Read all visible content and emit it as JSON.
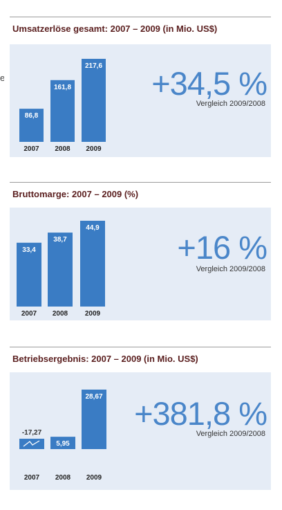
{
  "stray_text": "e",
  "chart_data": [
    {
      "type": "bar",
      "title": "Umsatzerlöse gesamt: 2007 – 2009 (in Mio. US$)",
      "categories": [
        "2007",
        "2008",
        "2009"
      ],
      "values": [
        86.8,
        161.8,
        217.6
      ],
      "value_labels": [
        "86,8",
        "161,8",
        "217,6"
      ],
      "headline": "+34,5 %",
      "comparison": "Vergleich 2009/2008",
      "ylim": [
        0,
        217.6
      ],
      "grid": false,
      "bar_color": "#3a7cc4"
    },
    {
      "type": "bar",
      "title": "Bruttomarge: 2007 – 2009 (%)",
      "categories": [
        "2007",
        "2008",
        "2009"
      ],
      "values": [
        33.4,
        38.7,
        44.9
      ],
      "value_labels": [
        "33,4",
        "38,7",
        "44,9"
      ],
      "headline": "+16 %",
      "comparison": "Vergleich 2009/2008",
      "ylim": [
        0,
        44.9
      ],
      "grid": false,
      "bar_color": "#3a7cc4"
    },
    {
      "type": "bar",
      "title": "Betriebsergebnis: 2007 – 2009 (in Mio. US$)",
      "categories": [
        "2007",
        "2008",
        "2009"
      ],
      "values": [
        -17.27,
        5.95,
        28.67
      ],
      "value_labels": [
        "-17,27",
        "5,95",
        "28,67"
      ],
      "headline": "+381,8 %",
      "comparison": "Vergleich 2009/2008",
      "ylim": [
        0,
        28.67
      ],
      "grid": false,
      "bar_color": "#3a7cc4"
    }
  ]
}
